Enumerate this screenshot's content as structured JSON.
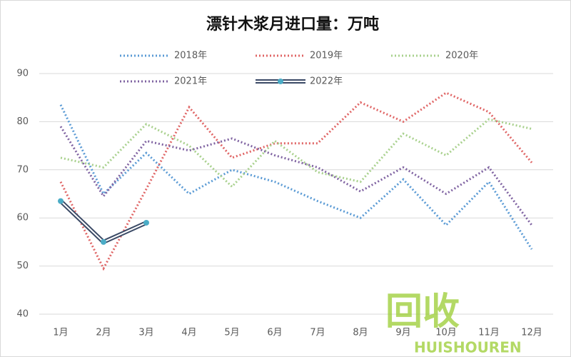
{
  "chart_data": {
    "type": "line",
    "title": "漂针木浆月进口量：万吨",
    "categories": [
      "1月",
      "2月",
      "3月",
      "4月",
      "5月",
      "6月",
      "7月",
      "8月",
      "9月",
      "10月",
      "11月",
      "12月"
    ],
    "series": [
      {
        "name": "2018年",
        "color": "#5b9bd5",
        "dash": "dotted",
        "values": [
          83.5,
          65,
          73.5,
          65,
          70,
          67.5,
          63.5,
          60,
          68,
          58.5,
          67.5,
          53.5
        ]
      },
      {
        "name": "2019年",
        "color": "#e06666",
        "dash": "dotted",
        "values": [
          67.5,
          49.5,
          66,
          83,
          72.5,
          75.5,
          75.5,
          84,
          80,
          86,
          82,
          71.5
        ]
      },
      {
        "name": "2020年",
        "color": "#a9d18e",
        "dash": "dotted",
        "values": [
          72.5,
          70.5,
          79.5,
          75,
          66.5,
          76,
          69.5,
          67.5,
          77.5,
          73,
          80.5,
          78.5
        ]
      },
      {
        "name": "2021年",
        "color": "#8064a2",
        "dash": "dotted",
        "values": [
          79,
          64.5,
          76,
          74,
          76.5,
          73,
          70.5,
          65.5,
          70.5,
          65,
          70.5,
          58.5
        ]
      },
      {
        "name": "2022年",
        "color": "#3b4a66",
        "dash": "solid",
        "marker_color": "#4bacc6",
        "values": [
          63.5,
          55,
          59,
          null,
          null,
          null,
          null,
          null,
          null,
          null,
          null,
          null
        ]
      }
    ],
    "ylim": [
      40,
      90
    ],
    "yticks": [
      40,
      50,
      60,
      70,
      80,
      90
    ],
    "grid": true,
    "watermark": [
      "回收",
      "HUISHOUREN"
    ]
  }
}
